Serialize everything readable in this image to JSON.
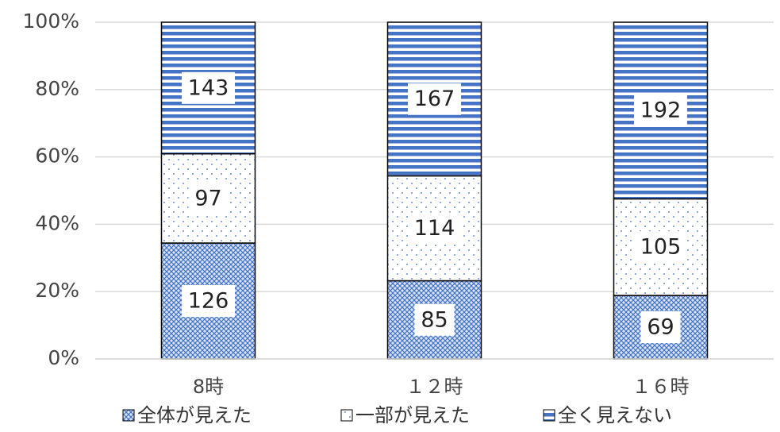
{
  "chart_data": {
    "type": "bar",
    "stacking": "percent",
    "categories": [
      "8時",
      "１２時",
      "１６時"
    ],
    "series": [
      {
        "name": "全体が見えた",
        "color": "#4472c4",
        "pattern": "crosshatch",
        "values": [
          126,
          85,
          69
        ]
      },
      {
        "name": "一部が見えた",
        "color": "#4472c4",
        "pattern": "dots",
        "values": [
          97,
          114,
          105
        ]
      },
      {
        "name": "全く見えない",
        "color": "#4472c4",
        "pattern": "stripes",
        "values": [
          143,
          167,
          192
        ]
      }
    ],
    "ylim": [
      0,
      100
    ],
    "yticks": [
      {
        "value": 0,
        "label": "0%"
      },
      {
        "value": 20,
        "label": "20%"
      },
      {
        "value": 40,
        "label": "40%"
      },
      {
        "value": 60,
        "label": "60%"
      },
      {
        "value": 80,
        "label": "80%"
      },
      {
        "value": 100,
        "label": "100%"
      }
    ],
    "grid": true,
    "legend": "bottom"
  }
}
